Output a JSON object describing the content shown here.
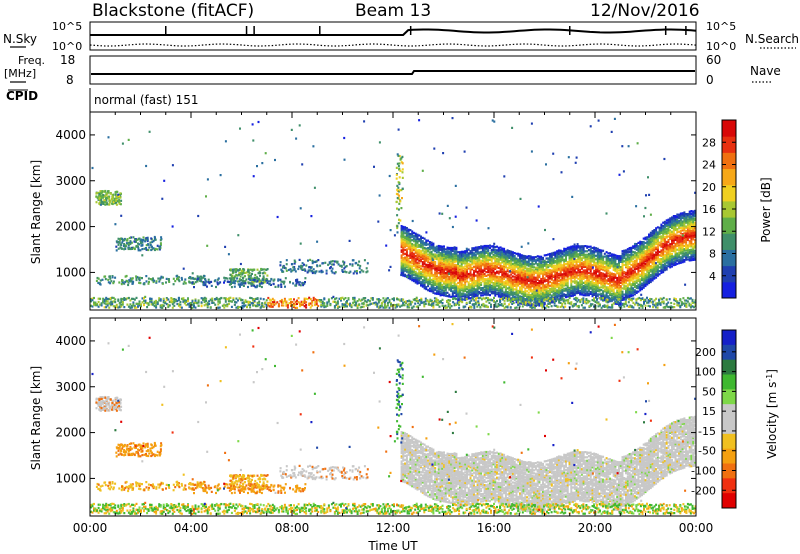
{
  "header": {
    "station": "Blackstone (fitACF)",
    "beam": "Beam 13",
    "date": "12/Nov/2016"
  },
  "panels": {
    "nsky": {
      "label": "N.Sky",
      "right_label": "N.Search",
      "ytick_top": "10^5",
      "ytick_bottom": "10^0",
      "rtick_top": "10^5",
      "rtick_bottom": "10^0"
    },
    "freq": {
      "label_line1": "Freq.",
      "label_line2": "[MHz]",
      "right_label": "Nave",
      "ytick_top": "18",
      "ytick_bottom": "8",
      "rtick_top": "60",
      "rtick_bottom": "0"
    },
    "cpid": {
      "label": "CPID",
      "text": "normal (fast) 151"
    }
  },
  "chart_data": [
    {
      "type": "heatmap",
      "name": "power",
      "ylabel": "Slant Range [km]",
      "ylim": [
        180,
        4500
      ],
      "yticks": [
        1000,
        2000,
        3000,
        4000
      ],
      "colorbar": {
        "label": "Power [dB]",
        "range": [
          0,
          32
        ],
        "ticks": [
          4,
          8,
          12,
          16,
          20,
          24,
          28
        ],
        "colors": [
          "#1520e0",
          "#1f3fb0",
          "#2a6fa0",
          "#3f8f6a",
          "#5fae48",
          "#a8c832",
          "#f0d020",
          "#f6a818",
          "#f07010",
          "#e83010",
          "#d80808"
        ]
      }
    },
    {
      "type": "heatmap",
      "name": "velocity",
      "ylabel": "Slant Range [km]",
      "xlabel": "Time UT",
      "xticks": [
        "00:00",
        "04:00",
        "08:00",
        "12:00",
        "16:00",
        "20:00",
        "00:00"
      ],
      "ylim": [
        180,
        4500
      ],
      "yticks": [
        1000,
        2000,
        3000,
        4000
      ],
      "colorbar": {
        "label": "Velocity [m s^-1]",
        "ticks": [
          200,
          100,
          50,
          15,
          -15,
          -50,
          -100,
          -200
        ],
        "colors": [
          "#1520c8",
          "#1f48a8",
          "#2c7a40",
          "#3fb830",
          "#7ed848",
          "#c8c8c8",
          "#c8c8c8",
          "#f0c020",
          "#f4a010",
          "#f07010",
          "#f03010",
          "#e00000"
        ]
      }
    }
  ]
}
